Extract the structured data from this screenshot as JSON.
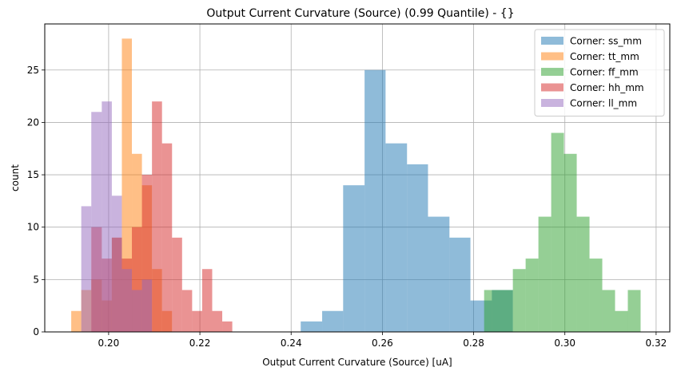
{
  "chart_data": {
    "type": "histogram",
    "title": "Output Current Curvature (Source) (0.99 Quantile) - {}",
    "xlabel": "Output Current Curvature (Source) [uA]",
    "ylabel": "count",
    "xlim": [
      0.186,
      0.323
    ],
    "ylim": [
      0,
      29.4
    ],
    "xticks": [
      0.2,
      0.22,
      0.24,
      0.26,
      0.28,
      0.3,
      0.32
    ],
    "xtick_labels": [
      "0.20",
      "0.22",
      "0.24",
      "0.26",
      "0.28",
      "0.30",
      "0.32"
    ],
    "yticks": [
      0,
      5,
      10,
      15,
      20,
      25
    ],
    "ytick_labels": [
      "0",
      "5",
      "10",
      "15",
      "20",
      "25"
    ],
    "grid": true,
    "legend_position": "top-right",
    "series": [
      {
        "name": "Corner: ss_mm",
        "color": "#1f77b4",
        "opacity": 0.5,
        "bins": [
          {
            "x0": 0.2421,
            "x1": 0.2468,
            "count": 1
          },
          {
            "x0": 0.2468,
            "x1": 0.2514,
            "count": 2
          },
          {
            "x0": 0.2514,
            "x1": 0.2561,
            "count": 14
          },
          {
            "x0": 0.2561,
            "x1": 0.2607,
            "count": 25
          },
          {
            "x0": 0.2607,
            "x1": 0.2654,
            "count": 18
          },
          {
            "x0": 0.2654,
            "x1": 0.27,
            "count": 16
          },
          {
            "x0": 0.27,
            "x1": 0.2747,
            "count": 11
          },
          {
            "x0": 0.2747,
            "x1": 0.2793,
            "count": 9
          },
          {
            "x0": 0.2793,
            "x1": 0.284,
            "count": 3
          },
          {
            "x0": 0.284,
            "x1": 0.2886,
            "count": 4
          }
        ]
      },
      {
        "name": "Corner: tt_mm",
        "color": "#ff7f0e",
        "opacity": 0.5,
        "bins": [
          {
            "x0": 0.1918,
            "x1": 0.194,
            "count": 2
          },
          {
            "x0": 0.194,
            "x1": 0.1962,
            "count": 4
          },
          {
            "x0": 0.1962,
            "x1": 0.1985,
            "count": 5
          },
          {
            "x0": 0.1985,
            "x1": 0.2007,
            "count": 3
          },
          {
            "x0": 0.2007,
            "x1": 0.2029,
            "count": 9
          },
          {
            "x0": 0.2029,
            "x1": 0.2051,
            "count": 28
          },
          {
            "x0": 0.2051,
            "x1": 0.2073,
            "count": 17
          },
          {
            "x0": 0.2073,
            "x1": 0.2095,
            "count": 14
          },
          {
            "x0": 0.2095,
            "x1": 0.2117,
            "count": 6
          },
          {
            "x0": 0.2117,
            "x1": 0.2139,
            "count": 2
          }
        ]
      },
      {
        "name": "Corner: ff_mm",
        "color": "#2ca02c",
        "opacity": 0.5,
        "bins": [
          {
            "x0": 0.2823,
            "x1": 0.2886,
            "count": 4
          },
          {
            "x0": 0.2886,
            "x1": 0.2914,
            "count": 6
          },
          {
            "x0": 0.2914,
            "x1": 0.2942,
            "count": 7
          },
          {
            "x0": 0.2942,
            "x1": 0.297,
            "count": 11
          },
          {
            "x0": 0.297,
            "x1": 0.2998,
            "count": 19
          },
          {
            "x0": 0.2998,
            "x1": 0.3026,
            "count": 17
          },
          {
            "x0": 0.3026,
            "x1": 0.3054,
            "count": 11
          },
          {
            "x0": 0.3054,
            "x1": 0.3082,
            "count": 7
          },
          {
            "x0": 0.3082,
            "x1": 0.311,
            "count": 4
          },
          {
            "x0": 0.311,
            "x1": 0.3138,
            "count": 2
          },
          {
            "x0": 0.3138,
            "x1": 0.3166,
            "count": 4
          }
        ]
      },
      {
        "name": "Corner: hh_mm",
        "color": "#d62728",
        "opacity": 0.5,
        "bins": [
          {
            "x0": 0.1962,
            "x1": 0.1985,
            "count": 10
          },
          {
            "x0": 0.1985,
            "x1": 0.2007,
            "count": 7
          },
          {
            "x0": 0.2007,
            "x1": 0.2029,
            "count": 9
          },
          {
            "x0": 0.2029,
            "x1": 0.2051,
            "count": 7
          },
          {
            "x0": 0.2051,
            "x1": 0.2073,
            "count": 10
          },
          {
            "x0": 0.2073,
            "x1": 0.2095,
            "count": 15
          },
          {
            "x0": 0.2095,
            "x1": 0.2117,
            "count": 22
          },
          {
            "x0": 0.2117,
            "x1": 0.2139,
            "count": 18
          },
          {
            "x0": 0.2139,
            "x1": 0.2161,
            "count": 9
          },
          {
            "x0": 0.2161,
            "x1": 0.2183,
            "count": 4
          },
          {
            "x0": 0.2183,
            "x1": 0.2205,
            "count": 2
          },
          {
            "x0": 0.2205,
            "x1": 0.2227,
            "count": 6
          },
          {
            "x0": 0.2227,
            "x1": 0.2249,
            "count": 2
          },
          {
            "x0": 0.2249,
            "x1": 0.2271,
            "count": 1
          }
        ]
      },
      {
        "name": "Corner: ll_mm",
        "color": "#9467bd",
        "opacity": 0.5,
        "bins": [
          {
            "x0": 0.194,
            "x1": 0.1962,
            "count": 12
          },
          {
            "x0": 0.1962,
            "x1": 0.1985,
            "count": 21
          },
          {
            "x0": 0.1985,
            "x1": 0.2007,
            "count": 22
          },
          {
            "x0": 0.2007,
            "x1": 0.2029,
            "count": 13
          },
          {
            "x0": 0.2029,
            "x1": 0.2051,
            "count": 6
          },
          {
            "x0": 0.2051,
            "x1": 0.2073,
            "count": 4
          },
          {
            "x0": 0.2073,
            "x1": 0.2095,
            "count": 5
          }
        ]
      }
    ]
  }
}
